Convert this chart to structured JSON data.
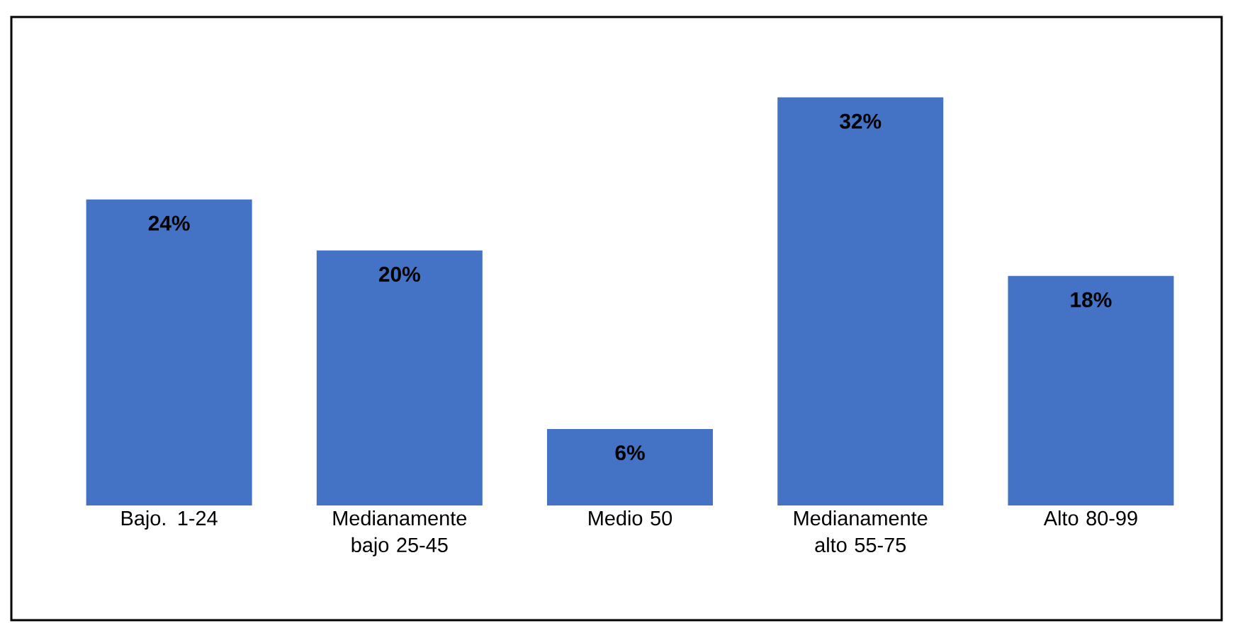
{
  "chart_data": {
    "type": "bar",
    "categories": [
      "Bajo. 1-24",
      "Medianamente bajo 25-45",
      "Medio 50",
      "Medianamente alto 55-75",
      "Alto 80-99"
    ],
    "values": [
      24,
      20,
      6,
      32,
      18
    ],
    "value_labels": [
      "24%",
      "20%",
      "6%",
      "32%",
      "18%"
    ],
    "color": "#4472c4"
  }
}
